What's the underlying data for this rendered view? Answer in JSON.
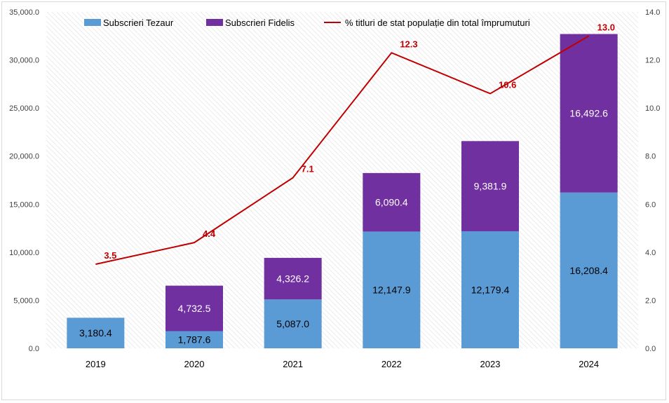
{
  "chart_data": {
    "type": "bar",
    "stacked": true,
    "categories": [
      "2019",
      "2020",
      "2021",
      "2022",
      "2023",
      "2024"
    ],
    "series": [
      {
        "name": "Subscrieri Tezaur",
        "kind": "bar",
        "axis": "left",
        "color": "#5b9bd5",
        "values": [
          3180.4,
          1787.6,
          5087.0,
          12147.9,
          12179.4,
          16208.4
        ],
        "labels": [
          "3,180.4",
          "1,787.6",
          "5,087.0",
          "12,147.9",
          "12,179.4",
          "16,208.4"
        ]
      },
      {
        "name": "Subscrieri Fidelis",
        "kind": "bar",
        "axis": "left",
        "color": "#7030a0",
        "values": [
          0,
          4732.5,
          4326.2,
          6090.4,
          9381.9,
          16492.6
        ],
        "labels": [
          "",
          "4,732.5",
          "4,326.2",
          "6,090.4",
          "9,381.9",
          "16,492.6"
        ]
      },
      {
        "name": "% titluri de stat populație din total împrumuturi",
        "kind": "line",
        "axis": "right",
        "color": "#c00000",
        "values": [
          3.5,
          4.4,
          7.1,
          12.3,
          10.6,
          13.0
        ],
        "labels": [
          "3.5",
          "4.4",
          "7.1",
          "12.3",
          "10.6",
          "13.0"
        ]
      }
    ],
    "y_left": {
      "ylim": [
        0,
        35000
      ],
      "ticks": [
        "0.0",
        "5,000.0",
        "10,000.0",
        "15,000.0",
        "20,000.0",
        "25,000.0",
        "30,000.0",
        "35,000.0"
      ]
    },
    "y_right": {
      "ylim": [
        0,
        14
      ],
      "ticks": [
        "0.0",
        "2.0",
        "4.0",
        "6.0",
        "8.0",
        "10.0",
        "12.0",
        "14.0"
      ]
    },
    "grid": false,
    "plot_background": "hatched",
    "legend": "top-center"
  }
}
